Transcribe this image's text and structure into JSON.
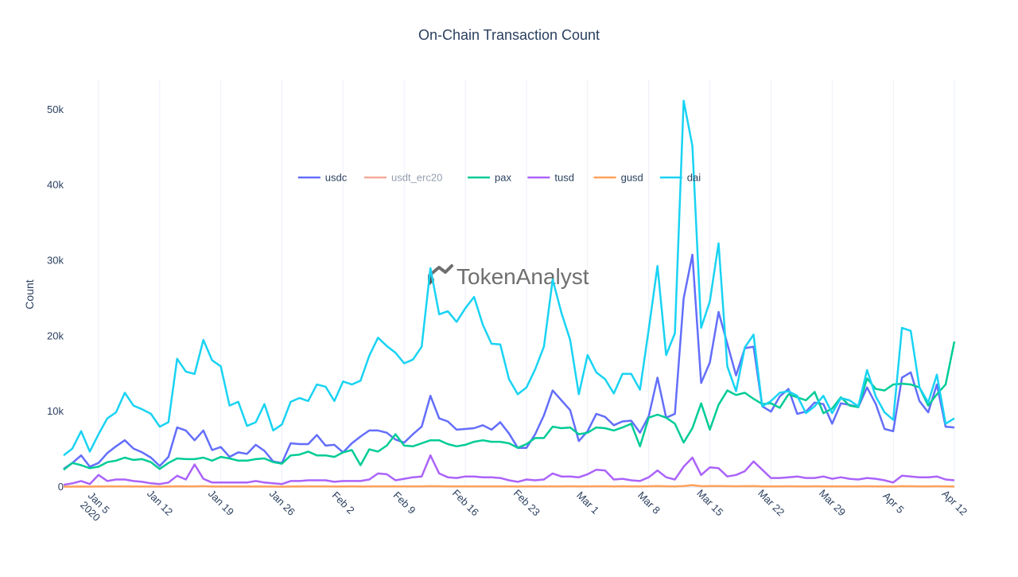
{
  "chart_data": {
    "type": "line",
    "title": "On-Chain Transaction Count",
    "xlabel": "",
    "ylabel": "Count",
    "x_start": "2020-01-01",
    "ylim": [
      0,
      54000
    ],
    "y_ticks": [
      {
        "value": 0,
        "label": "0"
      },
      {
        "value": 10000,
        "label": "10k"
      },
      {
        "value": 20000,
        "label": "20k"
      },
      {
        "value": 30000,
        "label": "30k"
      },
      {
        "value": 40000,
        "label": "40k"
      },
      {
        "value": 50000,
        "label": "50k"
      }
    ],
    "x_ticks": [
      {
        "date": "2020-01-05",
        "label": "Jan 5",
        "sublabel": "2020"
      },
      {
        "date": "2020-01-12",
        "label": "Jan 12"
      },
      {
        "date": "2020-01-19",
        "label": "Jan 19"
      },
      {
        "date": "2020-01-26",
        "label": "Jan 26"
      },
      {
        "date": "2020-02-02",
        "label": "Feb 2"
      },
      {
        "date": "2020-02-09",
        "label": "Feb 9"
      },
      {
        "date": "2020-02-16",
        "label": "Feb 16"
      },
      {
        "date": "2020-02-23",
        "label": "Feb 23"
      },
      {
        "date": "2020-03-01",
        "label": "Mar 1"
      },
      {
        "date": "2020-03-08",
        "label": "Mar 8"
      },
      {
        "date": "2020-03-15",
        "label": "Mar 15"
      },
      {
        "date": "2020-03-22",
        "label": "Mar 22"
      },
      {
        "date": "2020-03-29",
        "label": "Mar 29"
      },
      {
        "date": "2020-04-05",
        "label": "Apr 5"
      },
      {
        "date": "2020-04-12",
        "label": "Apr 12"
      }
    ],
    "grid": true,
    "legend_position": "top-center",
    "watermark": "TokenAnalyst",
    "series": [
      {
        "name": "usdc",
        "color": "#636efa",
        "legend_faded": false,
        "values": [
          2400,
          3200,
          4200,
          2700,
          3200,
          4500,
          5400,
          6200,
          5100,
          4600,
          3900,
          2800,
          4000,
          7900,
          7500,
          6200,
          7500,
          4900,
          5300,
          4000,
          4600,
          4400,
          5600,
          4800,
          3400,
          3200,
          5800,
          5700,
          5700,
          6900,
          5500,
          5600,
          4600,
          5800,
          6700,
          7500,
          7500,
          7200,
          6300,
          5900,
          7000,
          8000,
          12100,
          9100,
          8700,
          7600,
          7700,
          7800,
          8200,
          7600,
          8600,
          7100,
          5200,
          5200,
          7000,
          9500,
          12800,
          11500,
          10200,
          6100,
          7400,
          9700,
          9300,
          8200,
          8700,
          8800,
          7200,
          9400,
          14500,
          9200,
          9700,
          25000,
          30800,
          13800,
          16500,
          23200,
          19000,
          14800,
          18400,
          18600,
          10700,
          10000,
          12000,
          13000,
          9700,
          10000,
          11200,
          11000,
          8400,
          11100,
          10900,
          10600,
          13200,
          11000,
          7700,
          7400,
          14500,
          15200,
          11400,
          9900,
          13600,
          8000,
          7900
        ]
      },
      {
        "name": "usdt_erc20",
        "color": "#ef553b",
        "legend_faded": true,
        "values": []
      },
      {
        "name": "pax",
        "color": "#00cc96",
        "legend_faded": false,
        "values": [
          2300,
          3200,
          2900,
          2500,
          2700,
          3300,
          3500,
          3900,
          3600,
          3700,
          3300,
          2400,
          3200,
          3800,
          3700,
          3700,
          3900,
          3500,
          4000,
          3800,
          3500,
          3500,
          3700,
          3800,
          3300,
          3100,
          4200,
          4300,
          4700,
          4200,
          4200,
          4000,
          4600,
          4900,
          2900,
          5000,
          4700,
          5500,
          7000,
          5500,
          5400,
          5800,
          6200,
          6200,
          5700,
          5400,
          5600,
          6000,
          6200,
          6000,
          6000,
          5800,
          5200,
          5700,
          6500,
          6500,
          8000,
          7800,
          7900,
          7000,
          7200,
          7900,
          7800,
          7500,
          7900,
          8400,
          5400,
          9200,
          9600,
          9200,
          8400,
          5900,
          7800,
          11100,
          7600,
          10900,
          12800,
          12200,
          12500,
          11700,
          11000,
          11100,
          10500,
          12300,
          11900,
          11500,
          12600,
          9800,
          10400,
          11900,
          10800,
          10600,
          14400,
          13000,
          12800,
          13600,
          13700,
          13600,
          13200,
          10800,
          12300,
          13600,
          19300
        ]
      },
      {
        "name": "tusd",
        "color": "#ab63fa",
        "legend_faded": false,
        "values": [
          300,
          500,
          800,
          400,
          1600,
          800,
          1000,
          1000,
          800,
          700,
          500,
          400,
          600,
          1500,
          1000,
          3000,
          1100,
          600,
          600,
          600,
          600,
          600,
          800,
          600,
          500,
          400,
          800,
          800,
          900,
          900,
          900,
          700,
          800,
          800,
          800,
          1000,
          1800,
          1700,
          900,
          1100,
          1300,
          1400,
          4200,
          1800,
          1300,
          1200,
          1400,
          1400,
          1300,
          1300,
          1200,
          900,
          700,
          1000,
          900,
          1000,
          1800,
          1400,
          1400,
          1300,
          1700,
          2300,
          2200,
          1000,
          1100,
          900,
          800,
          1300,
          2200,
          1300,
          1000,
          2700,
          3900,
          1600,
          2600,
          2500,
          1400,
          1600,
          2100,
          3400,
          2300,
          1200,
          1200,
          1300,
          1400,
          1200,
          1200,
          1400,
          1100,
          1300,
          1100,
          1000,
          1200,
          1100,
          900,
          600,
          1500,
          1400,
          1300,
          1300,
          1400,
          1000,
          900
        ]
      },
      {
        "name": "gusd",
        "color": "#ffa15a",
        "legend_faded": false,
        "values": [
          50,
          60,
          80,
          60,
          70,
          90,
          100,
          90,
          80,
          80,
          70,
          60,
          80,
          110,
          90,
          100,
          120,
          80,
          80,
          70,
          70,
          70,
          80,
          70,
          60,
          50,
          80,
          80,
          90,
          90,
          90,
          80,
          80,
          90,
          80,
          90,
          100,
          100,
          90,
          90,
          90,
          100,
          120,
          110,
          100,
          100,
          100,
          100,
          100,
          100,
          100,
          90,
          80,
          90,
          90,
          90,
          100,
          100,
          110,
          100,
          100,
          110,
          110,
          100,
          110,
          100,
          90,
          110,
          130,
          110,
          100,
          130,
          250,
          120,
          130,
          130,
          120,
          110,
          120,
          130,
          100,
          100,
          100,
          110,
          100,
          100,
          110,
          100,
          90,
          100,
          100,
          90,
          110,
          100,
          90,
          80,
          120,
          110,
          100,
          90,
          110,
          90,
          80
        ]
      },
      {
        "name": "dai",
        "color": "#19d3f3",
        "legend_faded": false,
        "values": [
          4200,
          5100,
          7400,
          4700,
          7000,
          9100,
          9900,
          12500,
          10800,
          10300,
          9700,
          8000,
          8600,
          17000,
          15300,
          15000,
          19500,
          16800,
          16000,
          10800,
          11300,
          8100,
          8600,
          11000,
          7500,
          8300,
          11300,
          11800,
          11400,
          13600,
          13300,
          11400,
          14000,
          13600,
          14100,
          17400,
          19800,
          18700,
          17800,
          16400,
          16900,
          18600,
          29000,
          22900,
          23300,
          21900,
          23700,
          25200,
          21500,
          19000,
          18900,
          14300,
          12300,
          13200,
          15600,
          18600,
          27500,
          23100,
          19500,
          12300,
          17500,
          15200,
          14300,
          12400,
          15000,
          15000,
          12900,
          20900,
          29300,
          17500,
          20400,
          51200,
          45200,
          21100,
          24600,
          32300,
          16000,
          12700,
          18500,
          20200,
          10700,
          11400,
          12500,
          12700,
          12100,
          9800,
          10700,
          12100,
          9800,
          11800,
          11500,
          10700,
          15500,
          12000,
          9900,
          8900,
          21100,
          20700,
          13200,
          11200,
          14900,
          8400,
          9100
        ]
      }
    ]
  }
}
